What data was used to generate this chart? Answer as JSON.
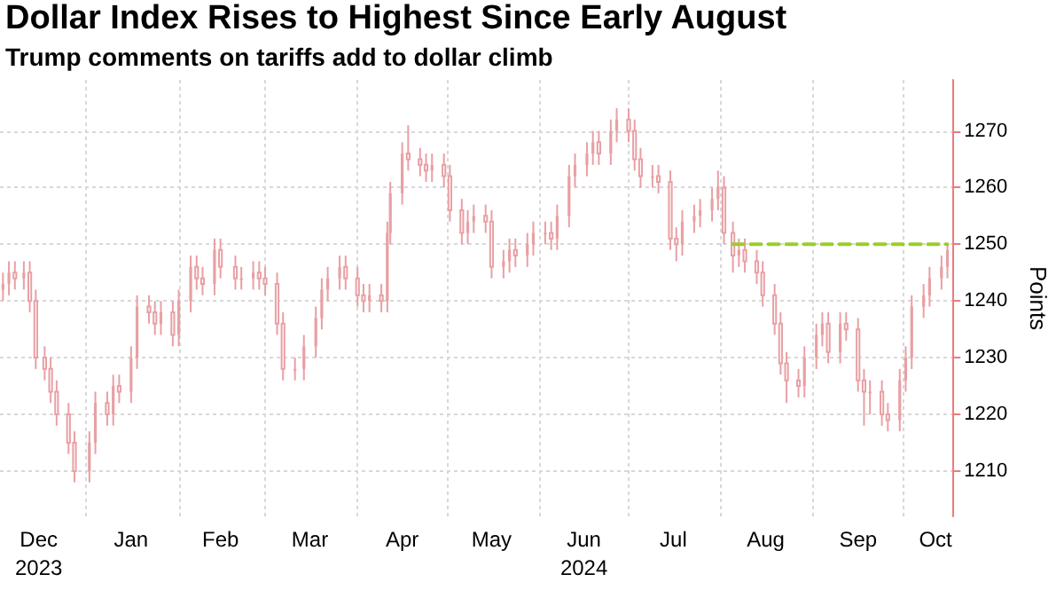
{
  "chart_data": {
    "type": "candlestick",
    "title": "Dollar Index Rises to Highest Since Early August",
    "subtitle": "Trump comments on tariffs add to dollar climb",
    "ylabel": "Points",
    "color": "#e8a0a4",
    "grid": true,
    "xlim": [
      "2023-12-03",
      "2024-10-18"
    ],
    "xticks": [
      {
        "value": "2023-12-16",
        "label": "Dec\n2023"
      },
      {
        "value": "2024-01-01",
        "label": null
      },
      {
        "value": "2024-01-16",
        "label": "Jan"
      },
      {
        "value": "2024-02-01",
        "label": null
      },
      {
        "value": "2024-02-15",
        "label": "Feb"
      },
      {
        "value": "2024-03-01",
        "label": null
      },
      {
        "value": "2024-03-16",
        "label": "Mar"
      },
      {
        "value": "2024-04-01",
        "label": null
      },
      {
        "value": "2024-04-16",
        "label": "Apr"
      },
      {
        "value": "2024-05-01",
        "label": null
      },
      {
        "value": "2024-05-16",
        "label": "May"
      },
      {
        "value": "2024-06-01",
        "label": null
      },
      {
        "value": "2024-06-16",
        "label": "Jun\n2024"
      },
      {
        "value": "2024-07-01",
        "label": null
      },
      {
        "value": "2024-07-16",
        "label": "Jul"
      },
      {
        "value": "2024-08-01",
        "label": null
      },
      {
        "value": "2024-08-16",
        "label": "Aug"
      },
      {
        "value": "2024-09-01",
        "label": null
      },
      {
        "value": "2024-09-16",
        "label": "Sep"
      },
      {
        "value": "2024-10-01",
        "label": null
      },
      {
        "value": "2024-10-12",
        "label": "Oct"
      }
    ],
    "ylim": [
      1202,
      1279
    ],
    "yticks": [
      1210,
      1220,
      1230,
      1240,
      1250,
      1260,
      1270
    ],
    "x": [
      "2023-12-04",
      "2023-12-06",
      "2023-12-08",
      "2023-12-11",
      "2023-12-13",
      "2023-12-15",
      "2023-12-18",
      "2023-12-20",
      "2023-12-22",
      "2023-12-26",
      "2023-12-28",
      "2024-01-02",
      "2024-01-04",
      "2024-01-08",
      "2024-01-10",
      "2024-01-12",
      "2024-01-16",
      "2024-01-18",
      "2024-01-22",
      "2024-01-24",
      "2024-01-26",
      "2024-01-30",
      "2024-02-01",
      "2024-02-05",
      "2024-02-07",
      "2024-02-09",
      "2024-02-13",
      "2024-02-15",
      "2024-02-20",
      "2024-02-22",
      "2024-02-26",
      "2024-02-28",
      "2024-03-01",
      "2024-03-05",
      "2024-03-07",
      "2024-03-11",
      "2024-03-14",
      "2024-03-18",
      "2024-03-20",
      "2024-03-22",
      "2024-03-26",
      "2024-03-28",
      "2024-04-01",
      "2024-04-03",
      "2024-04-05",
      "2024-04-09",
      "2024-04-11",
      "2024-04-12",
      "2024-04-16",
      "2024-04-18",
      "2024-04-22",
      "2024-04-24",
      "2024-04-26",
      "2024-04-30",
      "2024-05-02",
      "2024-05-06",
      "2024-05-08",
      "2024-05-10",
      "2024-05-14",
      "2024-05-16",
      "2024-05-20",
      "2024-05-22",
      "2024-05-24",
      "2024-05-28",
      "2024-05-30",
      "2024-06-03",
      "2024-06-05",
      "2024-06-07",
      "2024-06-11",
      "2024-06-13",
      "2024-06-17",
      "2024-06-19",
      "2024-06-21",
      "2024-06-25",
      "2024-06-27",
      "2024-07-01",
      "2024-07-03",
      "2024-07-05",
      "2024-07-09",
      "2024-07-11",
      "2024-07-15",
      "2024-07-17",
      "2024-07-19",
      "2024-07-23",
      "2024-07-25",
      "2024-07-29",
      "2024-07-31",
      "2024-08-02",
      "2024-08-05",
      "2024-08-07",
      "2024-08-09",
      "2024-08-13",
      "2024-08-15",
      "2024-08-19",
      "2024-08-21",
      "2024-08-23",
      "2024-08-27",
      "2024-08-29",
      "2024-09-02",
      "2024-09-04",
      "2024-09-06",
      "2024-09-10",
      "2024-09-12",
      "2024-09-16",
      "2024-09-18",
      "2024-09-20",
      "2024-09-24",
      "2024-09-26",
      "2024-09-30",
      "2024-10-02",
      "2024-10-04",
      "2024-10-08",
      "2024-10-10",
      "2024-10-14",
      "2024-10-16"
    ],
    "ohlc": [
      [
        1242,
        1245,
        1240,
        1243
      ],
      [
        1243,
        1247,
        1241,
        1245
      ],
      [
        1245,
        1247,
        1242,
        1244
      ],
      [
        1244,
        1247,
        1242,
        1245
      ],
      [
        1245,
        1247,
        1238,
        1240
      ],
      [
        1240,
        1242,
        1228,
        1230
      ],
      [
        1230,
        1232,
        1226,
        1228
      ],
      [
        1228,
        1230,
        1222,
        1224
      ],
      [
        1224,
        1226,
        1218,
        1220
      ],
      [
        1220,
        1222,
        1213,
        1215
      ],
      [
        1215,
        1217,
        1208,
        1210
      ],
      [
        1210,
        1217,
        1208,
        1215
      ],
      [
        1215,
        1224,
        1213,
        1222
      ],
      [
        1222,
        1224,
        1218,
        1220
      ],
      [
        1220,
        1227,
        1218,
        1225
      ],
      [
        1225,
        1227,
        1222,
        1224
      ],
      [
        1224,
        1232,
        1222,
        1230
      ],
      [
        1230,
        1241,
        1228,
        1239
      ],
      [
        1239,
        1241,
        1236,
        1238
      ],
      [
        1238,
        1240,
        1234,
        1236
      ],
      [
        1236,
        1240,
        1234,
        1238
      ],
      [
        1238,
        1240,
        1232,
        1234
      ],
      [
        1234,
        1242,
        1232,
        1240
      ],
      [
        1240,
        1248,
        1238,
        1246
      ],
      [
        1246,
        1248,
        1242,
        1244
      ],
      [
        1244,
        1246,
        1241,
        1243
      ],
      [
        1243,
        1251,
        1241,
        1249
      ],
      [
        1249,
        1251,
        1244,
        1246
      ],
      [
        1246,
        1248,
        1242,
        1244
      ],
      [
        1244,
        1246,
        1242,
        1244
      ],
      [
        1244,
        1247,
        1242,
        1245
      ],
      [
        1245,
        1247,
        1242,
        1244
      ],
      [
        1244,
        1246,
        1241,
        1243
      ],
      [
        1243,
        1245,
        1234,
        1236
      ],
      [
        1236,
        1238,
        1226,
        1228
      ],
      [
        1228,
        1230,
        1226,
        1228
      ],
      [
        1228,
        1234,
        1226,
        1232
      ],
      [
        1232,
        1239,
        1230,
        1237
      ],
      [
        1237,
        1244,
        1235,
        1242
      ],
      [
        1242,
        1246,
        1240,
        1244
      ],
      [
        1244,
        1248,
        1242,
        1246
      ],
      [
        1246,
        1248,
        1242,
        1244
      ],
      [
        1244,
        1246,
        1239,
        1241
      ],
      [
        1241,
        1243,
        1238,
        1240
      ],
      [
        1240,
        1243,
        1238,
        1241
      ],
      [
        1241,
        1243,
        1238,
        1240
      ],
      [
        1240,
        1254,
        1238,
        1252
      ],
      [
        1252,
        1261,
        1250,
        1259
      ],
      [
        1259,
        1268,
        1257,
        1266
      ],
      [
        1266,
        1271,
        1263,
        1265
      ],
      [
        1265,
        1267,
        1262,
        1264
      ],
      [
        1264,
        1266,
        1261,
        1263
      ],
      [
        1263,
        1266,
        1261,
        1264
      ],
      [
        1264,
        1266,
        1260,
        1262
      ],
      [
        1262,
        1264,
        1254,
        1256
      ],
      [
        1256,
        1258,
        1250,
        1252
      ],
      [
        1252,
        1256,
        1250,
        1254
      ],
      [
        1254,
        1257,
        1252,
        1255
      ],
      [
        1255,
        1257,
        1252,
        1254
      ],
      [
        1254,
        1256,
        1244,
        1246
      ],
      [
        1246,
        1249,
        1244,
        1247
      ],
      [
        1247,
        1251,
        1245,
        1249
      ],
      [
        1249,
        1251,
        1246,
        1248
      ],
      [
        1248,
        1252,
        1246,
        1250
      ],
      [
        1250,
        1254,
        1248,
        1252
      ],
      [
        1252,
        1254,
        1250,
        1252
      ],
      [
        1252,
        1254,
        1249,
        1251
      ],
      [
        1251,
        1257,
        1249,
        1255
      ],
      [
        1255,
        1264,
        1253,
        1262
      ],
      [
        1262,
        1266,
        1260,
        1264
      ],
      [
        1264,
        1268,
        1262,
        1266
      ],
      [
        1266,
        1270,
        1264,
        1268
      ],
      [
        1268,
        1270,
        1264,
        1266
      ],
      [
        1266,
        1272,
        1264,
        1270
      ],
      [
        1270,
        1274,
        1268,
        1272
      ],
      [
        1272,
        1274,
        1268,
        1270
      ],
      [
        1270,
        1272,
        1263,
        1265
      ],
      [
        1265,
        1267,
        1260,
        1262
      ],
      [
        1262,
        1264,
        1260,
        1262
      ],
      [
        1262,
        1264,
        1259,
        1261
      ],
      [
        1261,
        1263,
        1249,
        1251
      ],
      [
        1251,
        1253,
        1247,
        1250
      ],
      [
        1250,
        1256,
        1248,
        1254
      ],
      [
        1254,
        1257,
        1252,
        1255
      ],
      [
        1255,
        1258,
        1253,
        1256
      ],
      [
        1256,
        1260,
        1254,
        1258
      ],
      [
        1258,
        1263,
        1256,
        1260
      ],
      [
        1260,
        1262,
        1250,
        1252
      ],
      [
        1252,
        1254,
        1245,
        1248
      ],
      [
        1248,
        1251,
        1246,
        1249
      ],
      [
        1249,
        1251,
        1245,
        1247
      ],
      [
        1247,
        1249,
        1243,
        1245
      ],
      [
        1245,
        1247,
        1239,
        1241
      ],
      [
        1241,
        1243,
        1234,
        1236
      ],
      [
        1236,
        1238,
        1227,
        1229
      ],
      [
        1229,
        1231,
        1222,
        1226
      ],
      [
        1226,
        1228,
        1223,
        1225
      ],
      [
        1225,
        1232,
        1223,
        1230
      ],
      [
        1230,
        1236,
        1228,
        1234
      ],
      [
        1234,
        1238,
        1232,
        1236
      ],
      [
        1236,
        1238,
        1229,
        1231
      ],
      [
        1231,
        1238,
        1229,
        1236
      ],
      [
        1236,
        1238,
        1233,
        1235
      ],
      [
        1235,
        1237,
        1224,
        1226
      ],
      [
        1226,
        1228,
        1218,
        1224
      ],
      [
        1224,
        1226,
        1220,
        1224
      ],
      [
        1224,
        1226,
        1218,
        1220
      ],
      [
        1220,
        1222,
        1217,
        1219
      ],
      [
        1219,
        1228,
        1217,
        1226
      ],
      [
        1226,
        1232,
        1224,
        1230
      ],
      [
        1230,
        1241,
        1228,
        1239
      ],
      [
        1239,
        1243,
        1237,
        1241
      ],
      [
        1241,
        1246,
        1239,
        1244
      ],
      [
        1244,
        1248,
        1242,
        1246
      ],
      [
        1246,
        1250,
        1244,
        1249
      ]
    ],
    "series": [
      {
        "type": "line",
        "color": "#9ccc2e",
        "line_style": "dashed",
        "marker": "none",
        "x": [
          "2024-08-05",
          "2024-10-16"
        ],
        "values": [
          1250,
          1250
        ]
      }
    ]
  }
}
